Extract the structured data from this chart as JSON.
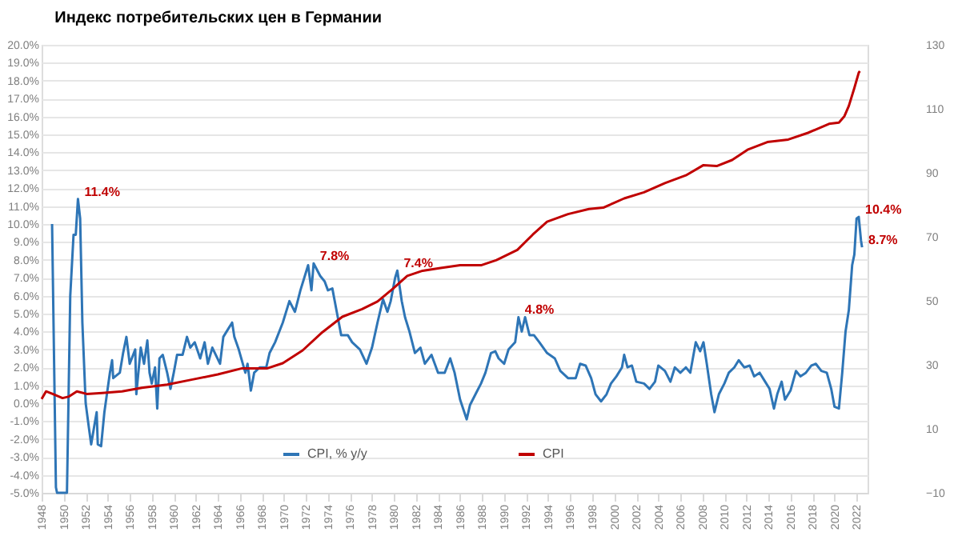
{
  "chart_data": {
    "type": "line",
    "title": "Индекс потребительских цен в Германии",
    "series": [
      {
        "name": "CPI, % y/y",
        "color": "#2e75b6",
        "x": [
          1948.95,
          1949.3,
          1949.4,
          1950.3,
          1950.6,
          1950.9,
          1951.1,
          1951.3,
          1951.5,
          1951.7,
          1952.0,
          1952.3,
          1952.5,
          1952.8,
          1953.0,
          1953.1,
          1953.4,
          1953.7,
          1954.2,
          1954.4,
          1954.5,
          1955.1,
          1955.4,
          1955.7,
          1956.0,
          1956.5,
          1956.6,
          1957.0,
          1957.3,
          1957.6,
          1957.8,
          1958.0,
          1958.3,
          1958.5,
          1958.7,
          1959.0,
          1959.4,
          1959.7,
          1960.0,
          1960.3,
          1960.8,
          1961.2,
          1961.5,
          1961.9,
          1962.4,
          1962.8,
          1963.1,
          1963.5,
          1964.2,
          1964.5,
          1964.9,
          1965.3,
          1965.5,
          1965.9,
          1966.5,
          1966.7,
          1967.0,
          1967.3,
          1967.8,
          1968.4,
          1968.7,
          1969.2,
          1969.9,
          1970.5,
          1971.0,
          1971.5,
          1971.9,
          1972.2,
          1972.5,
          1972.7,
          1973.3,
          1973.7,
          1974.0,
          1974.4,
          1974.8,
          1975.2,
          1975.8,
          1976.2,
          1976.9,
          1977.5,
          1978.0,
          1978.5,
          1979.0,
          1979.4,
          1979.7,
          1980.1,
          1980.3,
          1980.7,
          1981.0,
          1981.4,
          1981.9,
          1982.4,
          1982.8,
          1983.4,
          1984.0,
          1984.6,
          1985.1,
          1985.5,
          1986.0,
          1986.6,
          1986.9,
          1987.4,
          1987.9,
          1988.3,
          1988.8,
          1989.2,
          1989.5,
          1990.0,
          1990.4,
          1991.0,
          1991.3,
          1991.6,
          1991.9,
          1992.3,
          1992.7,
          1993.2,
          1993.9,
          1994.6,
          1995.1,
          1995.8,
          1996.5,
          1996.9,
          1997.4,
          1997.9,
          1998.3,
          1998.8,
          1999.3,
          1999.7,
          2000.2,
          2000.7,
          2000.9,
          2001.2,
          2001.6,
          2002.0,
          2002.7,
          2003.2,
          2003.7,
          2004.0,
          2004.6,
          2005.1,
          2005.5,
          2006.0,
          2006.5,
          2006.9,
          2007.4,
          2007.8,
          2008.1,
          2008.4,
          2008.8,
          2009.1,
          2009.5,
          2010.0,
          2010.4,
          2010.9,
          2011.3,
          2011.8,
          2012.3,
          2012.7,
          2013.2,
          2013.7,
          2014.1,
          2014.5,
          2014.8,
          2015.2,
          2015.5,
          2016.0,
          2016.5,
          2016.9,
          2017.4,
          2017.9,
          2018.3,
          2018.8,
          2019.3,
          2019.7,
          2020.0,
          2020.4,
          2020.7,
          2021.0,
          2021.3,
          2021.6,
          2021.8,
          2022.0,
          2022.2,
          2022.4,
          2022.5
        ],
        "values": [
          10.0,
          -4.7,
          -5.0,
          -5.0,
          6.0,
          9.4,
          9.4,
          11.4,
          10.3,
          4.5,
          0.0,
          -1.4,
          -2.3,
          -1.2,
          -0.5,
          -2.3,
          -2.4,
          -0.5,
          1.7,
          2.4,
          1.4,
          1.7,
          2.8,
          3.7,
          2.2,
          3.0,
          0.5,
          3.1,
          2.2,
          3.5,
          1.7,
          1.1,
          2.0,
          -0.3,
          2.5,
          2.7,
          1.7,
          0.8,
          1.7,
          2.7,
          2.7,
          3.7,
          3.1,
          3.4,
          2.5,
          3.4,
          2.2,
          3.1,
          2.2,
          3.7,
          4.1,
          4.5,
          3.7,
          3.0,
          1.7,
          2.2,
          0.7,
          1.7,
          2.0,
          2.0,
          2.8,
          3.4,
          4.5,
          5.7,
          5.1,
          6.3,
          7.1,
          7.7,
          6.3,
          7.8,
          7.1,
          6.8,
          6.3,
          6.4,
          5.1,
          3.8,
          3.8,
          3.4,
          3.0,
          2.2,
          3.1,
          4.5,
          5.8,
          5.1,
          5.7,
          7.0,
          7.4,
          5.7,
          4.8,
          4.0,
          2.8,
          3.1,
          2.2,
          2.7,
          1.7,
          1.7,
          2.5,
          1.7,
          0.2,
          -0.9,
          -0.1,
          0.5,
          1.1,
          1.7,
          2.8,
          2.9,
          2.5,
          2.2,
          3.0,
          3.4,
          4.8,
          4.0,
          4.8,
          3.8,
          3.8,
          3.4,
          2.8,
          2.5,
          1.8,
          1.4,
          1.4,
          2.2,
          2.1,
          1.4,
          0.5,
          0.1,
          0.5,
          1.1,
          1.5,
          2.0,
          2.7,
          2.0,
          2.1,
          1.2,
          1.1,
          0.8,
          1.2,
          2.1,
          1.8,
          1.2,
          2.0,
          1.7,
          2.0,
          1.7,
          3.4,
          2.9,
          3.4,
          2.2,
          0.5,
          -0.5,
          0.5,
          1.1,
          1.7,
          2.0,
          2.4,
          2.0,
          2.1,
          1.5,
          1.7,
          1.2,
          0.8,
          -0.3,
          0.5,
          1.2,
          0.2,
          0.7,
          1.8,
          1.5,
          1.7,
          2.1,
          2.2,
          1.8,
          1.7,
          0.8,
          -0.2,
          -0.3,
          1.7,
          4.0,
          5.2,
          7.7,
          8.3,
          10.3,
          10.4,
          9.1,
          8.7
        ]
      },
      {
        "name": "CPI",
        "color": "#c00000",
        "axis": "y2",
        "x": [
          1948.0,
          1948.4,
          1949.0,
          1949.9,
          1950.5,
          1951.2,
          1952.1,
          1953.5,
          1955.3,
          1957.1,
          1959.4,
          1961.7,
          1964.0,
          1966.2,
          1968.5,
          1969.9,
          1971.7,
          1973.5,
          1975.3,
          1977.1,
          1978.5,
          1979.9,
          1981.2,
          1982.6,
          1984.1,
          1986.0,
          1987.9,
          1989.3,
          1991.2,
          1992.6,
          1993.9,
          1995.8,
          1997.7,
          1999.0,
          2000.9,
          2002.7,
          2004.6,
          2006.5,
          2008.1,
          2009.3,
          2010.7,
          2012.1,
          2013.9,
          2015.8,
          2017.6,
          2019.5,
          2020.4,
          2020.9,
          2021.3,
          2021.8,
          2022.2,
          2022.3
        ],
        "values": [
          19.3,
          21.7,
          20.9,
          19.6,
          20.1,
          21.7,
          20.9,
          21.2,
          21.7,
          22.8,
          23.8,
          25.4,
          27.0,
          28.9,
          28.9,
          30.5,
          34.5,
          40.2,
          45.0,
          47.4,
          49.8,
          53.8,
          57.8,
          59.4,
          60.2,
          61.1,
          61.1,
          62.7,
          65.9,
          70.7,
          74.7,
          77.1,
          78.7,
          79.1,
          82.0,
          83.9,
          86.8,
          89.2,
          92.4,
          92.1,
          94.0,
          97.2,
          99.6,
          100.4,
          102.5,
          105.3,
          105.7,
          107.7,
          110.9,
          116.5,
          121.3,
          121.8
        ]
      }
    ],
    "xlim": [
      1948,
      2023
    ],
    "xticks": [
      1948,
      1950,
      1952,
      1954,
      1956,
      1958,
      1960,
      1962,
      1964,
      1966,
      1968,
      1970,
      1972,
      1974,
      1976,
      1978,
      1980,
      1982,
      1984,
      1986,
      1988,
      1990,
      1992,
      1994,
      1996,
      1998,
      2000,
      2002,
      2004,
      2006,
      2008,
      2010,
      2012,
      2014,
      2016,
      2018,
      2020,
      2022
    ],
    "ylim": [
      -5,
      20
    ],
    "yticks": [
      {
        "value": -5,
        "label": "-5.0%"
      },
      {
        "value": -4,
        "label": "-4.0%"
      },
      {
        "value": -3,
        "label": "-3.0%"
      },
      {
        "value": -2,
        "label": "-2.0%"
      },
      {
        "value": -1,
        "label": "-1.0%"
      },
      {
        "value": 0,
        "label": "0.0%"
      },
      {
        "value": 1,
        "label": "1.0%"
      },
      {
        "value": 2,
        "label": "2.0%"
      },
      {
        "value": 3,
        "label": "3.0%"
      },
      {
        "value": 4,
        "label": "4.0%"
      },
      {
        "value": 5,
        "label": "5.0%"
      },
      {
        "value": 6,
        "label": "6.0%"
      },
      {
        "value": 7,
        "label": "7.0%"
      },
      {
        "value": 8,
        "label": "8.0%"
      },
      {
        "value": 9,
        "label": "9.0%"
      },
      {
        "value": 10,
        "label": "10.0%"
      },
      {
        "value": 11,
        "label": "11.0%"
      },
      {
        "value": 12,
        "label": "12.0%"
      },
      {
        "value": 13,
        "label": "13.0%"
      },
      {
        "value": 14,
        "label": "14.0%"
      },
      {
        "value": 15,
        "label": "15.0%"
      },
      {
        "value": 16,
        "label": "16.0%"
      },
      {
        "value": 17,
        "label": "17.0%"
      },
      {
        "value": 18,
        "label": "18.0%"
      },
      {
        "value": 19,
        "label": "19.0%"
      },
      {
        "value": 20,
        "label": "20.0%"
      }
    ],
    "y2lim": [
      -10,
      130
    ],
    "y2ticks": [
      -10,
      10,
      30,
      50,
      70,
      90,
      110,
      130
    ],
    "annotations": [
      {
        "text": "11.4%",
        "x": 1951.3,
        "y": 11.4
      },
      {
        "text": "7.8%",
        "x": 1972.7,
        "y": 7.8
      },
      {
        "text": "7.4%",
        "x": 1980.3,
        "y": 7.4
      },
      {
        "text": "4.8%",
        "x": 1991.3,
        "y": 4.8
      },
      {
        "text": "10.4%",
        "x": 2022.2,
        "y": 10.4
      },
      {
        "text": "8.7%",
        "x": 2022.5,
        "y": 8.7
      }
    ],
    "grid": "y",
    "legend": "bottom",
    "line_style": "solid",
    "marker": "none"
  }
}
